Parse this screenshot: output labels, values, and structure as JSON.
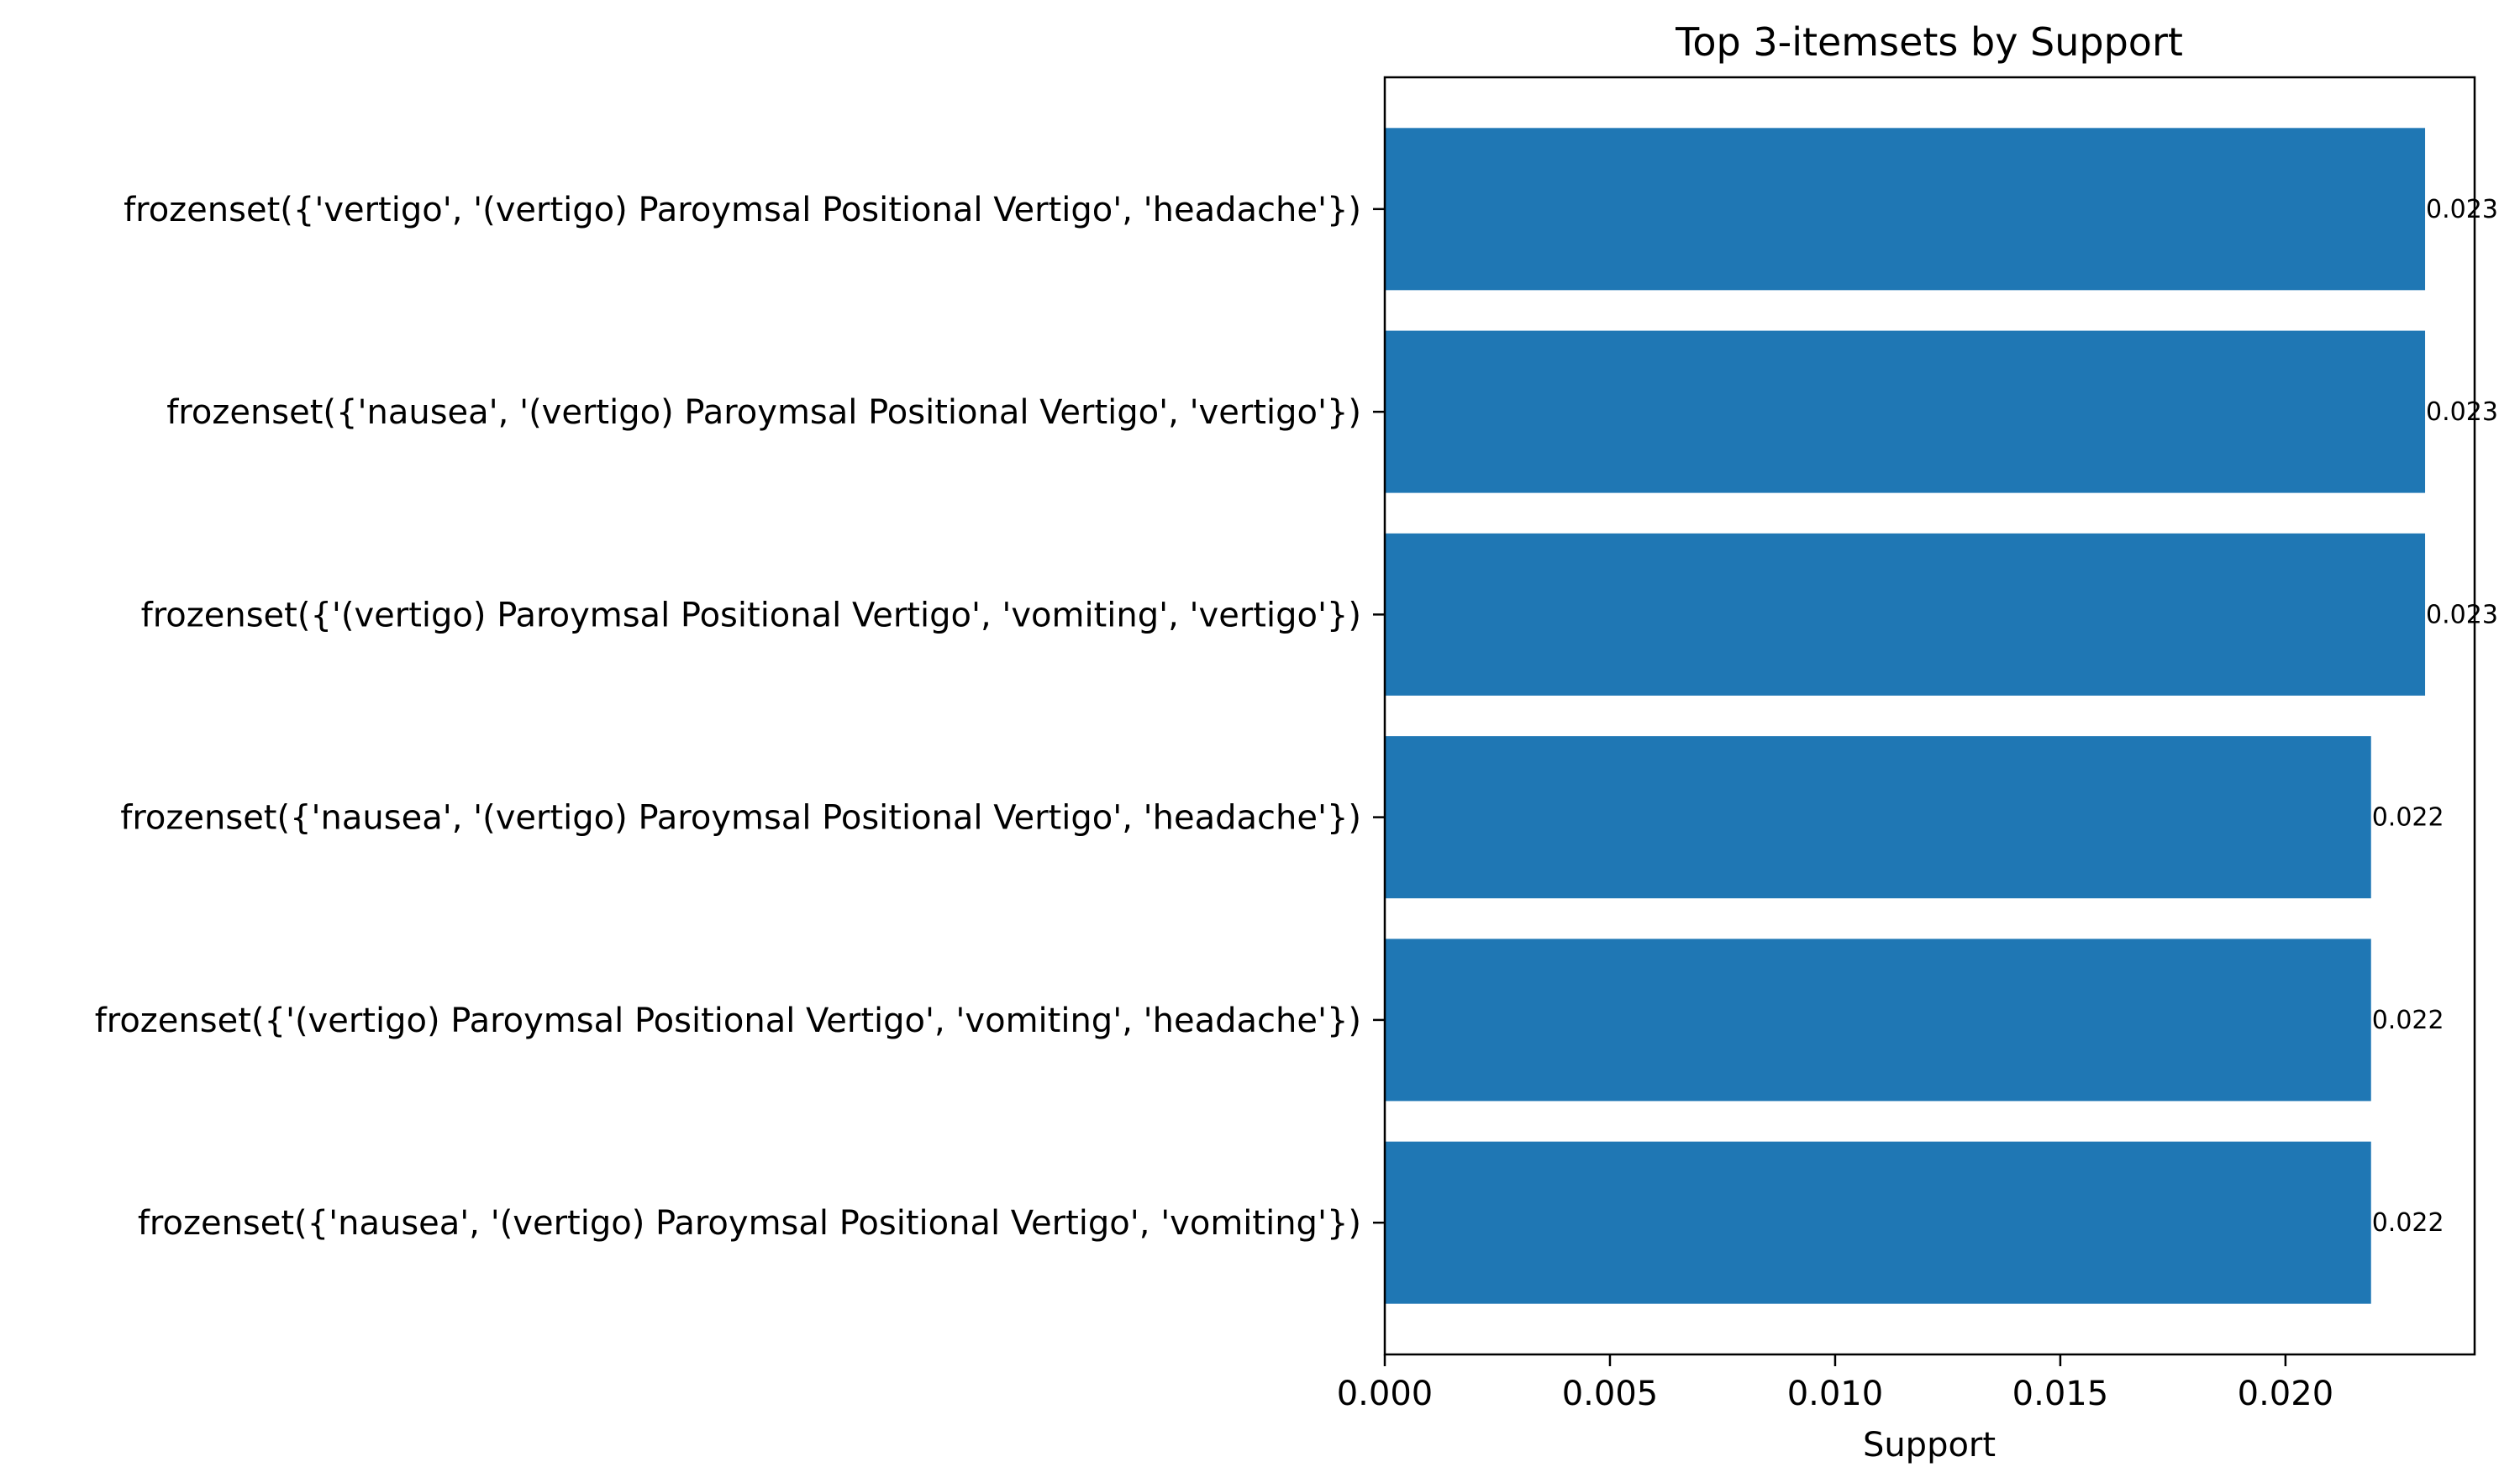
{
  "chart_data": {
    "type": "bar",
    "orientation": "horizontal",
    "title": "Top 3-itemsets by Support",
    "xlabel": "Support",
    "ylabel": "",
    "categories": [
      "frozenset({'vertigo', '(vertigo) Paroymsal  Positional Vertigo', 'headache'})",
      "frozenset({'nausea', '(vertigo) Paroymsal  Positional Vertigo', 'vertigo'})",
      "frozenset({'(vertigo) Paroymsal  Positional Vertigo', 'vomiting', 'vertigo'})",
      "frozenset({'nausea', '(vertigo) Paroymsal  Positional Vertigo', 'headache'})",
      "frozenset({'(vertigo) Paroymsal  Positional Vertigo', 'vomiting', 'headache'})",
      "frozenset({'nausea', '(vertigo) Paroymsal  Positional Vertigo', 'vomiting'})"
    ],
    "values": [
      0.0231,
      0.0231,
      0.0231,
      0.0219,
      0.0219,
      0.0219
    ],
    "data_labels": [
      "0.023",
      "0.023",
      "0.023",
      "0.022",
      "0.022",
      "0.022"
    ],
    "xlim": [
      0,
      0.0242
    ],
    "xticks": [
      0,
      0.005,
      0.01,
      0.015,
      0.02
    ],
    "xtick_labels": [
      "0.000",
      "0.005",
      "0.010",
      "0.015",
      "0.020"
    ],
    "bar_color": "#1f77b4",
    "grid": false,
    "legend": "none"
  }
}
